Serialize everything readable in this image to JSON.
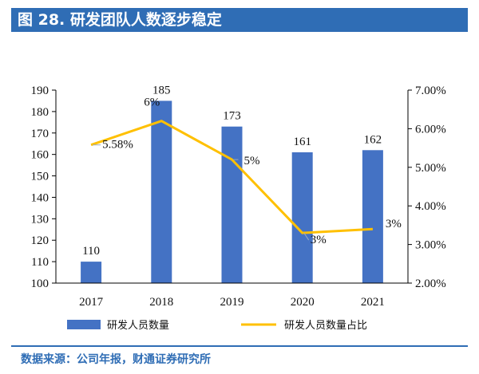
{
  "figure": {
    "title": "图 28. 研发团队人数逐步稳定",
    "source": "数据来源：公司年报，财通证券研究所"
  },
  "chart_data": {
    "type": "bar",
    "categories": [
      "2017",
      "2018",
      "2019",
      "2020",
      "2021"
    ],
    "series": [
      {
        "name": "研发人员数量",
        "type": "bar",
        "axis": "left",
        "values": [
          110,
          185,
          173,
          161,
          162
        ],
        "labels": [
          "110",
          "185",
          "173",
          "161",
          "162"
        ],
        "color": "#4472c4"
      },
      {
        "name": "研发人员数量占比",
        "type": "line",
        "axis": "right",
        "values": [
          5.58,
          6.2,
          5.2,
          3.3,
          3.4
        ],
        "labels": [
          "5.58%",
          "6%",
          "5%",
          "3%",
          "3%"
        ],
        "color": "#ffc000"
      }
    ],
    "y_left": {
      "range": [
        100,
        190
      ],
      "ticks": [
        "100",
        "110",
        "120",
        "130",
        "140",
        "150",
        "160",
        "170",
        "180",
        "190"
      ]
    },
    "y_right": {
      "range": [
        2.0,
        7.0
      ],
      "ticks": [
        "2.00%",
        "3.00%",
        "4.00%",
        "5.00%",
        "6.00%",
        "7.00%"
      ]
    },
    "grid": false,
    "legend_position": "bottom"
  }
}
